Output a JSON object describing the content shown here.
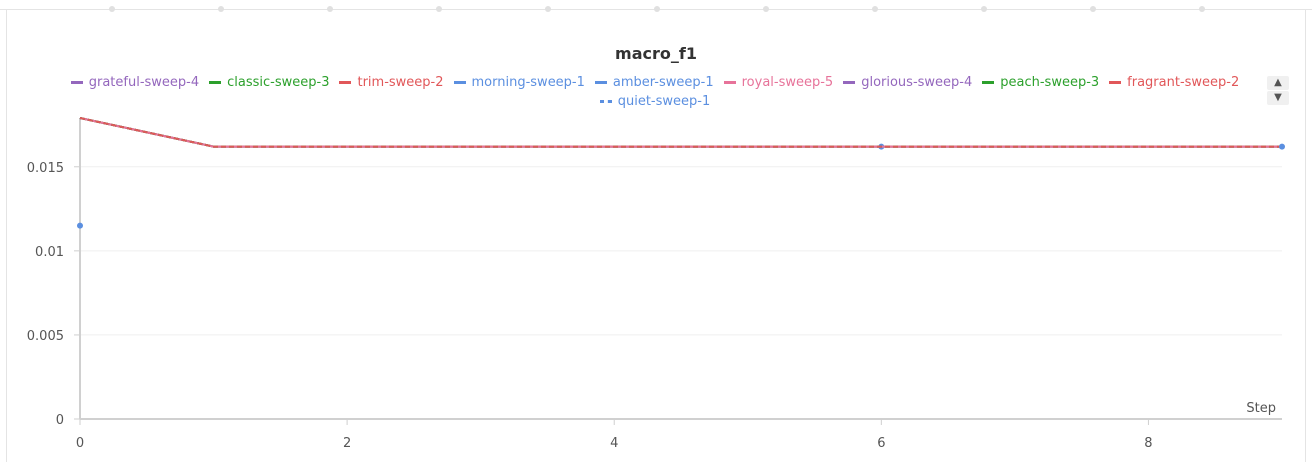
{
  "panel": {
    "scroll_up_icon": "triangle-up-icon",
    "scroll_down_icon": "triangle-down-icon"
  },
  "chart_data": {
    "type": "line",
    "title": "macro_f1",
    "xlabel": "Step",
    "ylabel": "",
    "xlim": [
      0,
      9
    ],
    "ylim": [
      0,
      0.018
    ],
    "grid": true,
    "legend_placement": "top",
    "x_ticks": [
      "0",
      "2",
      "4",
      "6",
      "8"
    ],
    "y_ticks": [
      "0",
      "0.005",
      "0.01",
      "0.015"
    ],
    "series": [
      {
        "name": "grateful-sweep-4",
        "color": "#9467bd",
        "dash": "solid",
        "x": [
          0,
          1,
          2,
          3,
          4,
          5,
          6,
          7,
          8,
          9
        ],
        "values": [
          0.0179,
          0.0162,
          0.0162,
          0.0162,
          0.0162,
          0.0162,
          0.0162,
          0.0162,
          0.0162,
          0.0162
        ]
      },
      {
        "name": "classic-sweep-3",
        "color": "#2ca02c",
        "dash": "solid",
        "x": [
          0,
          1,
          2,
          3,
          4,
          5,
          6,
          7,
          8,
          9
        ],
        "values": [
          0.0179,
          0.0162,
          0.0162,
          0.0162,
          0.0162,
          0.0162,
          0.0162,
          0.0162,
          0.0162,
          0.0162
        ]
      },
      {
        "name": "trim-sweep-2",
        "color": "#e15759",
        "dash": "solid",
        "x": [
          0,
          1,
          2,
          3,
          4,
          5,
          6,
          7,
          8,
          9
        ],
        "values": [
          0.0179,
          0.0162,
          0.0162,
          0.0162,
          0.0162,
          0.0162,
          0.0162,
          0.0162,
          0.0162,
          0.0162
        ]
      },
      {
        "name": "morning-sweep-1",
        "color": "#5b8fe0",
        "dash": "solid",
        "x": [
          0
        ],
        "values": [
          0.0115
        ]
      },
      {
        "name": "amber-sweep-1",
        "color": "#5b8fe0",
        "dash": "dashed",
        "x": [
          6
        ],
        "values": [
          0.0162
        ]
      },
      {
        "name": "royal-sweep-5",
        "color": "#e7739a",
        "dash": "solid",
        "x": [
          0,
          1,
          2,
          3,
          4,
          5,
          6,
          7,
          8,
          9
        ],
        "values": [
          0.0179,
          0.0162,
          0.0162,
          0.0162,
          0.0162,
          0.0162,
          0.0162,
          0.0162,
          0.0162,
          0.0162
        ]
      },
      {
        "name": "glorious-sweep-4",
        "color": "#9467bd",
        "dash": "dashed",
        "x": [
          0,
          1,
          2,
          3,
          4,
          5,
          6,
          7,
          8,
          9
        ],
        "values": [
          0.0179,
          0.0162,
          0.0162,
          0.0162,
          0.0162,
          0.0162,
          0.0162,
          0.0162,
          0.0162,
          0.0162
        ]
      },
      {
        "name": "peach-sweep-3",
        "color": "#2ca02c",
        "dash": "dashed",
        "x": [
          0,
          1,
          2,
          3,
          4,
          5,
          6,
          7,
          8,
          9
        ],
        "values": [
          0.0179,
          0.0162,
          0.0162,
          0.0162,
          0.0162,
          0.0162,
          0.0162,
          0.0162,
          0.0162,
          0.0162
        ]
      },
      {
        "name": "fragrant-sweep-2",
        "color": "#e15759",
        "dash": "dashed",
        "x": [
          0,
          1,
          2,
          3,
          4,
          5,
          6,
          7,
          8,
          9
        ],
        "values": [
          0.0179,
          0.0162,
          0.0162,
          0.0162,
          0.0162,
          0.0162,
          0.0162,
          0.0162,
          0.0162,
          0.0162
        ]
      },
      {
        "name": "quiet-sweep-1",
        "color": "#5b8fe0",
        "dash": "dotted",
        "x": [
          9
        ],
        "values": [
          0.0162
        ]
      }
    ]
  }
}
